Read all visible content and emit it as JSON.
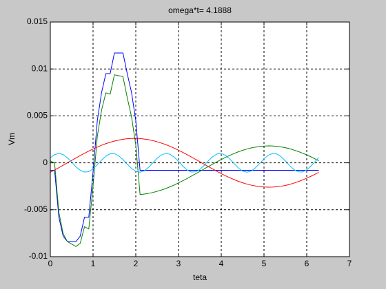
{
  "chart_data": {
    "type": "line",
    "title": "omega*t= 4.1888",
    "x_label": "teta",
    "y_label": "Vm",
    "x": [
      0,
      0.1,
      0.2,
      0.3,
      0.4,
      0.5,
      0.6,
      0.7,
      0.8,
      0.9,
      1.0,
      1.1,
      1.2,
      1.3,
      1.4,
      1.5,
      1.6,
      1.7,
      1.8,
      1.9,
      2.0,
      2.1,
      2.2,
      2.3,
      2.4,
      2.5,
      2.6,
      2.7,
      2.8,
      2.9,
      3.0,
      3.1,
      3.2,
      3.3,
      3.4,
      3.5,
      3.6,
      3.7,
      3.8,
      3.9,
      4.0,
      4.1,
      4.2,
      4.3,
      4.4,
      4.5,
      4.6,
      4.7,
      4.8,
      4.9,
      5.0,
      5.1,
      5.2,
      5.3,
      5.4,
      5.5,
      5.6,
      5.7,
      5.8,
      5.9,
      6.0,
      6.1,
      6.2,
      6.28
    ],
    "series": [
      {
        "color": "#0000ff",
        "values": [
          -0.0008,
          -0.0008,
          -0.0058,
          -0.0078,
          -0.0084,
          -0.0084,
          -0.0084,
          -0.0078,
          -0.0058,
          -0.0058,
          -0.001,
          0.0045,
          0.0075,
          0.0095,
          0.0095,
          0.0117,
          0.0117,
          0.0117,
          0.0095,
          0.0075,
          0.0045,
          -0.0008,
          -0.0008,
          -0.0008,
          -0.0008,
          -0.0008,
          -0.0008,
          -0.0008,
          -0.0008,
          -0.0008,
          -0.0008,
          -0.0008,
          -0.0008,
          -0.0008,
          -0.0008,
          -0.0008,
          -0.0008,
          -0.0008,
          -0.0008,
          -0.0008,
          -0.0008,
          -0.0008,
          -0.0008,
          -0.0008,
          -0.0008,
          -0.0008,
          -0.0008,
          -0.0008,
          -0.0008,
          -0.0008,
          -0.0008,
          -0.0008,
          -0.0008,
          -0.0008,
          -0.0008,
          -0.0008,
          -0.0008,
          -0.0008,
          -0.0008,
          -0.0008,
          -0.0008,
          -0.0008,
          -0.0008,
          -0.0008
        ]
      },
      {
        "color": "#008000",
        "values": [
          0.00021,
          -3e-05,
          -0.00528,
          -0.00754,
          -0.0084,
          -0.00866,
          -0.00892,
          -0.00857,
          -0.00681,
          -0.00705,
          -0.00247,
          0.00283,
          0.00563,
          0.00746,
          0.00731,
          0.00938,
          0.00928,
          0.00919,
          0.00694,
          0.00491,
          0.0019,
          -0.00338,
          -0.00333,
          -0.00326,
          -0.00316,
          -0.00304,
          -0.0029,
          -0.00274,
          -0.00256,
          -0.00236,
          -0.00214,
          -0.00191,
          -0.00167,
          -0.00142,
          -0.00117,
          -0.00091,
          -0.00065,
          -0.00039,
          -0.00014,
          0.00011,
          0.00035,
          0.00058,
          0.00079,
          0.00099,
          0.00117,
          0.00133,
          0.00147,
          0.00158,
          0.00167,
          0.00174,
          0.00178,
          0.0018,
          0.00179,
          0.00175,
          0.00169,
          0.00161,
          0.0015,
          0.00136,
          0.00121,
          0.00103,
          0.00084,
          0.00063,
          0.00041,
          0.00022
        ]
      },
      {
        "color": "#ff0000",
        "values": [
          -0.00101,
          -0.00077,
          -0.00052,
          -0.00026,
          0,
          0.00026,
          0.00052,
          0.00077,
          0.00101,
          0.00125,
          0.00147,
          0.00167,
          0.00187,
          0.00204,
          0.00219,
          0.00232,
          0.00242,
          0.00251,
          0.00256,
          0.00259,
          0.0026,
          0.00258,
          0.00253,
          0.00246,
          0.00236,
          0.00224,
          0.0021,
          0.00194,
          0.00176,
          0.00156,
          0.00134,
          0.00111,
          0.00087,
          0.00062,
          0.00037,
          0.00011,
          -0.00015,
          -0.00041,
          -0.00066,
          -0.00091,
          -0.00115,
          -0.00138,
          -0.00159,
          -0.00179,
          -0.00197,
          -0.00213,
          -0.00227,
          -0.00238,
          -0.00247,
          -0.00254,
          -0.00258,
          -0.0026,
          -0.00259,
          -0.00255,
          -0.00249,
          -0.00241,
          -0.0023,
          -0.00216,
          -0.00201,
          -0.00183,
          -0.00164,
          -0.00143,
          -0.00121,
          -0.00102
        ]
      },
      {
        "color": "#00bfff",
        "values": [
          0.00054,
          0.00088,
          0.001,
          0.00088,
          0.00054,
          7e-05,
          -0.00042,
          -0.0008,
          -0.00099,
          -0.00094,
          -0.00065,
          -0.00021,
          0.00028,
          0.00071,
          0.00096,
          0.00098,
          0.00075,
          0.00035,
          -0.00015,
          -0.0006,
          -0.00091,
          -0.001,
          -0.00084,
          -0.00048,
          0,
          0.00048,
          0.00084,
          0.001,
          0.00091,
          0.0006,
          0.00014,
          -0.00035,
          -0.00076,
          -0.00098,
          -0.00096,
          -0.0007,
          -0.00028,
          0.00022,
          0.00066,
          0.00094,
          0.00099,
          0.0008,
          0.00041,
          -8e-05,
          -0.00055,
          -0.00089,
          -0.001,
          -0.00088,
          -0.00053,
          -6e-05,
          0.00042,
          0.00081,
          0.00099,
          0.00094,
          0.00065,
          0.0002,
          -0.00029,
          -0.00072,
          -0.00096,
          -0.00098,
          -0.00075,
          -0.00034,
          0.00015,
          0.00055
        ]
      }
    ],
    "xlim": [
      0,
      7
    ],
    "xticks": [
      0,
      1,
      2,
      3,
      4,
      5,
      6,
      7
    ],
    "ylim": [
      -0.01,
      0.015
    ],
    "yticks": [
      -0.01,
      -0.005,
      0,
      0.005,
      0.01,
      0.015
    ],
    "grid": true
  }
}
